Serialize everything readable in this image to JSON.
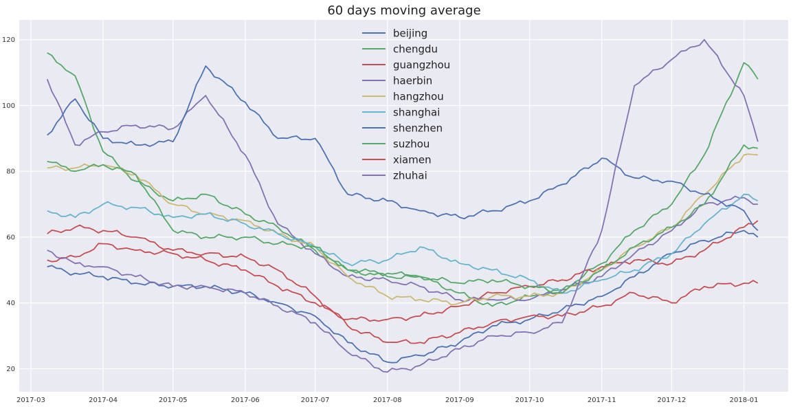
{
  "chart_data": {
    "type": "line",
    "title": "60 days moving average",
    "xlabel": "",
    "ylabel": "",
    "x_start": "2017-03-08",
    "x_end": "2018-01-07",
    "xlim": [
      "2017-02-24",
      "2018-01-20"
    ],
    "ylim": [
      13,
      126
    ],
    "x_ticks": [
      "2017-03",
      "2017-04",
      "2017-05",
      "2017-06",
      "2017-07",
      "2017-08",
      "2017-09",
      "2017-10",
      "2017-11",
      "2017-12",
      "2018-01"
    ],
    "y_ticks": [
      20,
      40,
      60,
      80,
      100,
      120
    ],
    "grid": true,
    "legend_position": "top-center",
    "series": [
      {
        "name": "beijing",
        "color": "#4c72b0",
        "x": [
          "2017-03-08",
          "2017-03-20",
          "2017-04-01",
          "2017-04-15",
          "2017-05-01",
          "2017-05-15",
          "2017-06-01",
          "2017-06-15",
          "2017-07-01",
          "2017-07-15",
          "2017-08-01",
          "2017-08-15",
          "2017-09-01",
          "2017-09-15",
          "2017-10-01",
          "2017-10-15",
          "2017-11-01",
          "2017-11-15",
          "2017-12-01",
          "2017-12-15",
          "2018-01-01",
          "2018-01-07"
        ],
        "values": [
          51,
          49,
          48,
          46,
          45,
          45,
          43,
          40,
          36,
          28,
          22,
          24,
          28,
          33,
          35,
          38,
          42,
          48,
          55,
          59,
          62,
          60
        ]
      },
      {
        "name": "chengdu",
        "color": "#55a868",
        "x": [
          "2017-03-08",
          "2017-03-20",
          "2017-04-01",
          "2017-04-15",
          "2017-05-01",
          "2017-05-15",
          "2017-06-01",
          "2017-06-15",
          "2017-07-01",
          "2017-07-15",
          "2017-08-01",
          "2017-08-15",
          "2017-09-01",
          "2017-09-15",
          "2017-10-01",
          "2017-10-15",
          "2017-11-01",
          "2017-11-15",
          "2017-12-01",
          "2017-12-15",
          "2018-01-01",
          "2018-01-07"
        ],
        "values": [
          116,
          109,
          86,
          77,
          71,
          73,
          67,
          63,
          56,
          50,
          49,
          48,
          43,
          39,
          42,
          44,
          52,
          62,
          70,
          85,
          113,
          108
        ]
      },
      {
        "name": "guangzhou",
        "color": "#c44e52",
        "x": [
          "2017-03-08",
          "2017-03-20",
          "2017-04-01",
          "2017-04-15",
          "2017-05-01",
          "2017-05-15",
          "2017-06-01",
          "2017-06-15",
          "2017-07-01",
          "2017-07-15",
          "2017-08-01",
          "2017-08-15",
          "2017-09-01",
          "2017-09-15",
          "2017-10-01",
          "2017-10-15",
          "2017-11-01",
          "2017-11-15",
          "2017-12-01",
          "2017-12-15",
          "2018-01-01",
          "2018-01-07"
        ],
        "values": [
          53,
          54,
          58,
          56,
          55,
          53,
          50,
          45,
          40,
          35,
          35,
          36,
          39,
          43,
          45,
          47,
          51,
          53,
          52,
          56,
          63,
          65
        ]
      },
      {
        "name": "haerbin",
        "color": "#8172b2",
        "x": [
          "2017-03-08",
          "2017-03-20",
          "2017-04-01",
          "2017-04-15",
          "2017-05-01",
          "2017-05-15",
          "2017-06-01",
          "2017-06-15",
          "2017-07-01",
          "2017-07-15",
          "2017-08-01",
          "2017-08-15",
          "2017-09-01",
          "2017-09-15",
          "2017-10-01",
          "2017-10-15",
          "2017-11-01",
          "2017-11-15",
          "2017-12-01",
          "2017-12-15",
          "2018-01-01",
          "2018-01-07"
        ],
        "values": [
          108,
          88,
          92,
          94,
          93,
          103,
          85,
          64,
          55,
          48,
          47,
          45,
          41,
          41,
          41,
          44,
          48,
          55,
          62,
          70,
          72,
          70
        ]
      },
      {
        "name": "hangzhou",
        "color": "#ccb974",
        "x": [
          "2017-03-08",
          "2017-03-20",
          "2017-04-01",
          "2017-04-15",
          "2017-05-01",
          "2017-05-15",
          "2017-06-01",
          "2017-06-15",
          "2017-07-01",
          "2017-07-15",
          "2017-08-01",
          "2017-08-15",
          "2017-09-01",
          "2017-09-15",
          "2017-10-01",
          "2017-10-15",
          "2017-11-01",
          "2017-11-15",
          "2017-12-01",
          "2017-12-15",
          "2018-01-01",
          "2018-01-07"
        ],
        "values": [
          81,
          81,
          82,
          79,
          70,
          67,
          65,
          61,
          57,
          48,
          42,
          41,
          40,
          42,
          42,
          43,
          50,
          57,
          63,
          73,
          85,
          85
        ]
      },
      {
        "name": "shanghai",
        "color": "#64b5cd",
        "x": [
          "2017-03-08",
          "2017-03-20",
          "2017-04-01",
          "2017-04-15",
          "2017-05-01",
          "2017-05-15",
          "2017-06-01",
          "2017-06-15",
          "2017-07-01",
          "2017-07-15",
          "2017-08-01",
          "2017-08-15",
          "2017-09-01",
          "2017-09-15",
          "2017-10-01",
          "2017-10-15",
          "2017-11-01",
          "2017-11-15",
          "2017-12-01",
          "2017-12-15",
          "2018-01-01",
          "2018-01-07"
        ],
        "values": [
          68,
          66,
          70,
          69,
          66,
          67,
          64,
          61,
          57,
          52,
          53,
          57,
          52,
          50,
          47,
          43,
          47,
          50,
          55,
          64,
          73,
          71
        ]
      },
      {
        "name": "shenzhen",
        "color": "#4c72b0",
        "x": [
          "2017-03-08",
          "2017-03-20",
          "2017-04-01",
          "2017-04-15",
          "2017-05-01",
          "2017-05-15",
          "2017-06-01",
          "2017-06-15",
          "2017-07-01",
          "2017-07-15",
          "2017-08-01",
          "2017-08-15",
          "2017-09-01",
          "2017-09-15",
          "2017-10-01",
          "2017-10-15",
          "2017-11-01",
          "2017-11-15",
          "2017-12-01",
          "2017-12-15",
          "2018-01-01",
          "2018-01-07"
        ],
        "values": [
          91,
          102,
          90,
          88,
          89,
          112,
          101,
          90,
          90,
          73,
          71,
          68,
          66,
          68,
          71,
          76,
          84,
          78,
          77,
          73,
          68,
          62
        ]
      },
      {
        "name": "suzhou",
        "color": "#55a868",
        "x": [
          "2017-03-08",
          "2017-03-20",
          "2017-04-01",
          "2017-04-15",
          "2017-05-01",
          "2017-05-15",
          "2017-06-01",
          "2017-06-15",
          "2017-07-01",
          "2017-07-15",
          "2017-08-01",
          "2017-08-15",
          "2017-09-01",
          "2017-09-15",
          "2017-10-01",
          "2017-10-15",
          "2017-11-01",
          "2017-11-15",
          "2017-12-01",
          "2017-12-15",
          "2018-01-01",
          "2018-01-07"
        ],
        "values": [
          83,
          80,
          82,
          79,
          62,
          60,
          60,
          58,
          57,
          50,
          48,
          48,
          46,
          47,
          45,
          43,
          50,
          57,
          63,
          70,
          88,
          87
        ]
      },
      {
        "name": "xiamen",
        "color": "#c44e52",
        "x": [
          "2017-03-08",
          "2017-03-20",
          "2017-04-01",
          "2017-04-15",
          "2017-05-01",
          "2017-05-15",
          "2017-06-01",
          "2017-06-15",
          "2017-07-01",
          "2017-07-15",
          "2017-08-01",
          "2017-08-15",
          "2017-09-01",
          "2017-09-15",
          "2017-10-01",
          "2017-10-15",
          "2017-11-01",
          "2017-11-15",
          "2017-12-01",
          "2017-12-15",
          "2018-01-01",
          "2018-01-07"
        ],
        "values": [
          61,
          63,
          62,
          60,
          56,
          55,
          54,
          50,
          42,
          33,
          28,
          28,
          31,
          34,
          36,
          36,
          39,
          43,
          40,
          45,
          46,
          46
        ]
      },
      {
        "name": "zhuhai",
        "color": "#8172b2",
        "x": [
          "2017-03-08",
          "2017-03-20",
          "2017-04-01",
          "2017-04-15",
          "2017-05-01",
          "2017-05-15",
          "2017-06-01",
          "2017-06-15",
          "2017-07-01",
          "2017-07-15",
          "2017-08-01",
          "2017-08-15",
          "2017-09-01",
          "2017-09-15",
          "2017-10-01",
          "2017-10-15",
          "2017-11-01",
          "2017-11-15",
          "2017-12-01",
          "2017-12-15",
          "2018-01-01",
          "2018-01-07"
        ],
        "values": [
          56,
          52,
          51,
          48,
          45,
          45,
          43,
          39,
          34,
          25,
          19,
          21,
          26,
          30,
          31,
          34,
          62,
          106,
          114,
          120,
          103,
          89
        ]
      }
    ]
  }
}
